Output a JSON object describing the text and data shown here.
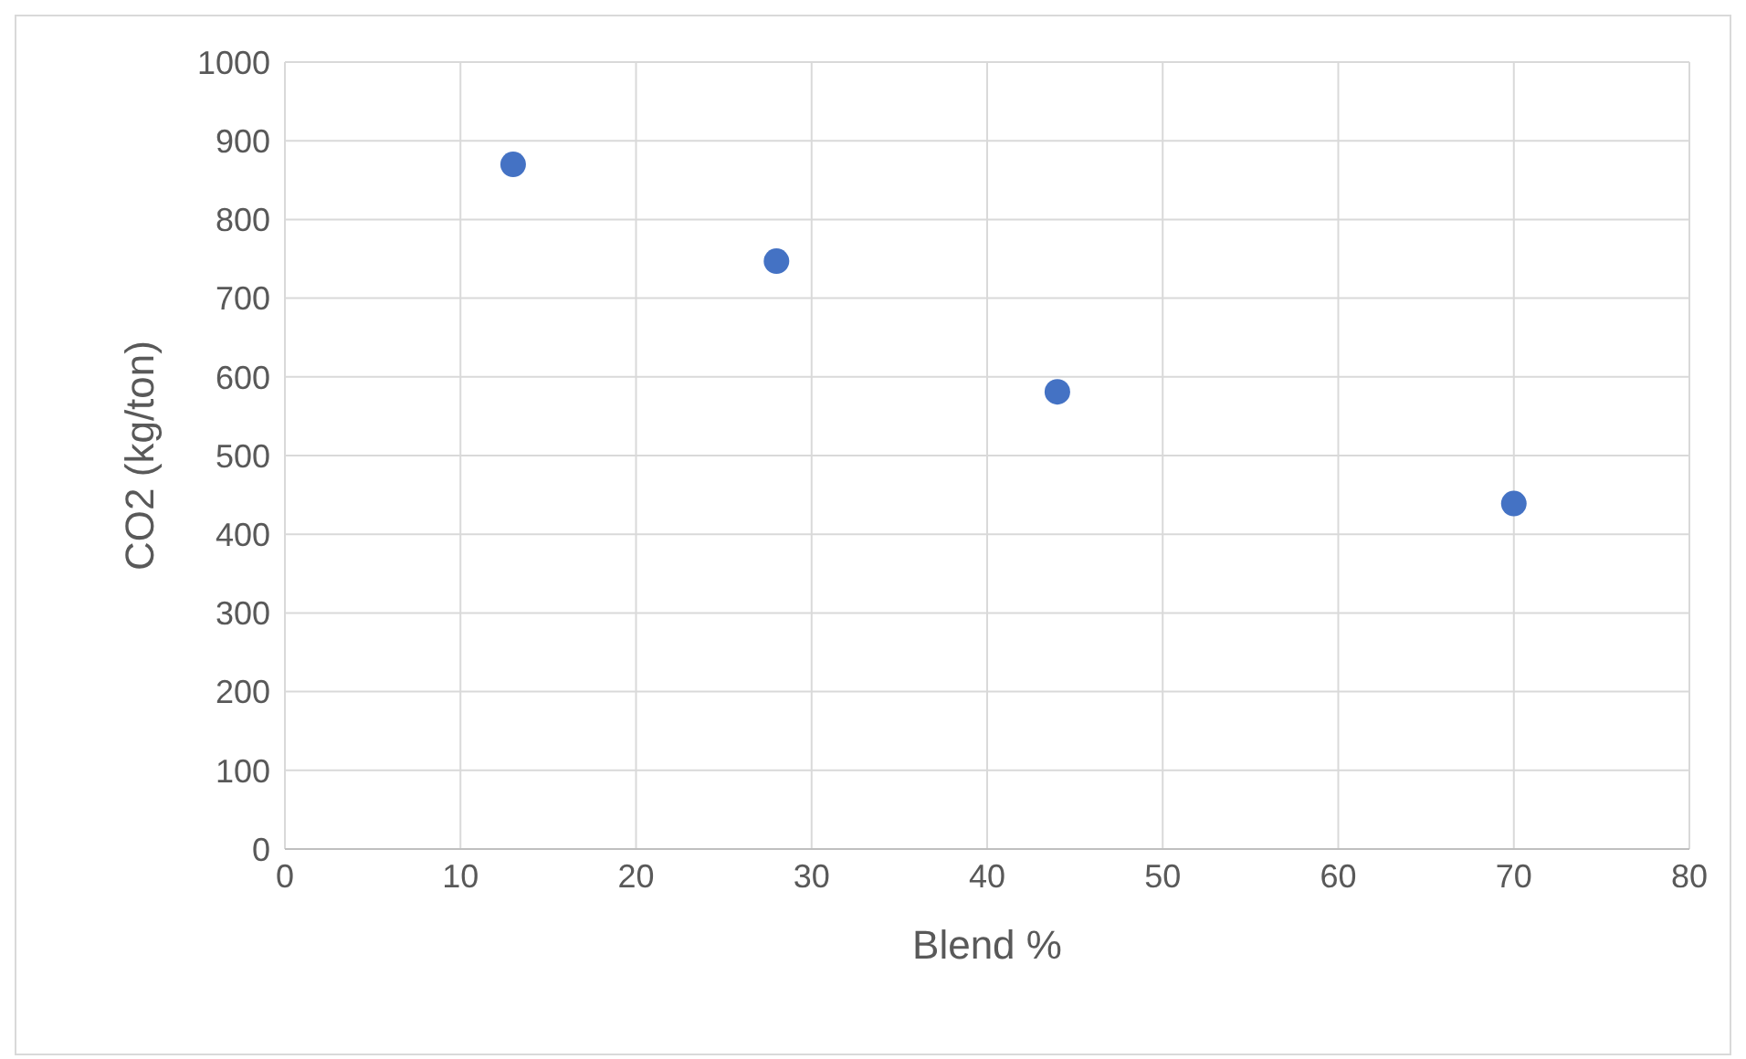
{
  "chart_data": {
    "type": "scatter",
    "xlabel": "Blend %",
    "ylabel": "CO2 (kg/ton)",
    "x": [
      13,
      28,
      44,
      70
    ],
    "series": [
      {
        "color": "#4472c4",
        "values": [
          870,
          747,
          581,
          439
        ]
      }
    ],
    "xlim": [
      0,
      80
    ],
    "xticks": [
      0,
      10,
      20,
      30,
      40,
      50,
      60,
      70,
      80
    ],
    "ylim": [
      0,
      1000
    ],
    "yticks": [
      0,
      100,
      200,
      300,
      400,
      500,
      600,
      700,
      800,
      900,
      1000
    ],
    "grid": true,
    "legend": false,
    "marker": "circle"
  }
}
